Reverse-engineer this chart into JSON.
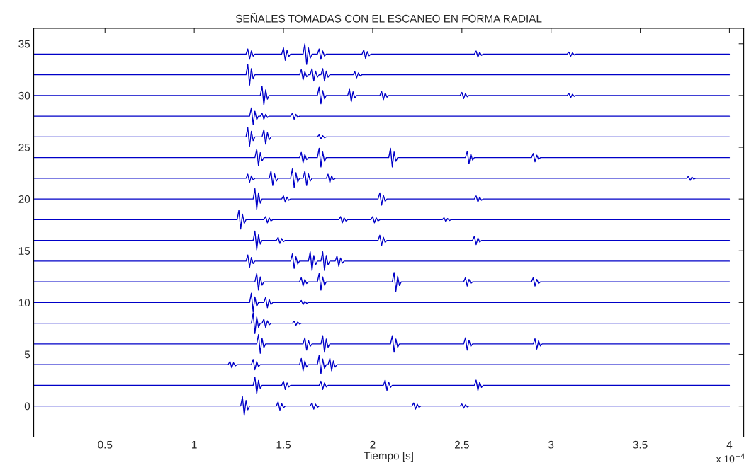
{
  "chart_data": {
    "type": "line",
    "title": "SEÑALES TOMADAS CON EL ESCANEO EN FORMA RADIAL",
    "xlabel": "Tiempo [s]",
    "annotations": [
      "x 10$^{−4}$"
    ],
    "xlim": [
      0.1,
      4.08
    ],
    "ylim": [
      -3,
      36.5
    ],
    "xticks": [
      0.5,
      1,
      1.5,
      2,
      2.5,
      3,
      3.5,
      4
    ],
    "yticks": [
      0,
      5,
      10,
      15,
      20,
      25,
      30,
      35
    ],
    "series": [
      {
        "color": "#0000c8",
        "x": [
          0.1,
          1.26,
          1.27,
          1.28,
          1.29,
          1.3,
          1.31,
          1.46,
          1.47,
          1.48,
          1.49,
          1.5,
          1.51,
          1.65,
          1.66,
          1.67,
          1.68,
          1.69,
          1.7,
          2.22,
          2.23,
          2.24,
          2.25,
          2.26,
          2.27,
          2.49,
          2.5,
          2.51,
          2.52,
          2.53,
          2.54,
          4
        ],
        "values": [
          0,
          0,
          0.9,
          -0.9,
          0.54,
          -0.36,
          0,
          0,
          0.4,
          -0.4,
          0.24,
          -0.16,
          0,
          0,
          0.3,
          -0.3,
          0.18,
          -0.12,
          0,
          0,
          0.3,
          -0.3,
          0.18,
          -0.12,
          0,
          0,
          0.2,
          -0.2,
          0.12,
          -0.08,
          0,
          0
        ]
      },
      {
        "color": "#0000c8",
        "x": [
          0.1,
          1.33,
          1.34,
          1.35,
          1.36,
          1.37,
          1.38,
          1.49,
          1.5,
          1.51,
          1.52,
          1.53,
          1.54,
          1.7,
          1.71,
          1.72,
          1.73,
          1.74,
          1.75,
          2.06,
          2.07,
          2.08,
          2.09,
          2.1,
          2.11,
          2.57,
          2.58,
          2.59,
          2.6,
          2.61,
          2.62,
          4
        ],
        "values": [
          2,
          2,
          2.8,
          1.2,
          2.48,
          1.68,
          2,
          2,
          2.4,
          1.6,
          2.24,
          1.84,
          2,
          2,
          2.4,
          1.6,
          2.24,
          1.84,
          2,
          2,
          2.5,
          1.5,
          2.3,
          1.8,
          2,
          2,
          2.5,
          1.5,
          2.3,
          1.8,
          2,
          2
        ]
      },
      {
        "color": "#0000c8",
        "x": [
          0.1,
          1.19,
          1.2,
          1.21,
          1.22,
          1.23,
          1.24,
          1.32,
          1.33,
          1.34,
          1.35,
          1.36,
          1.37,
          1.59,
          1.6,
          1.61,
          1.62,
          1.63,
          1.64,
          1.69,
          1.7,
          1.71,
          1.72,
          1.73,
          1.74,
          1.75,
          1.76,
          1.77,
          1.78,
          1.79,
          1.8,
          4
        ],
        "values": [
          4,
          4,
          4.3,
          3.7,
          4.18,
          3.88,
          4,
          4,
          4.5,
          3.5,
          4.3,
          3.8,
          4,
          4,
          4.6,
          3.4,
          4.36,
          3.76,
          4,
          4,
          4.9,
          3.1,
          4.54,
          3.64,
          4,
          4,
          4.6,
          3.4,
          4.36,
          3.76,
          4,
          4
        ]
      },
      {
        "color": "#0000c8",
        "x": [
          0.1,
          1.35,
          1.36,
          1.37,
          1.38,
          1.39,
          1.4,
          1.61,
          1.62,
          1.63,
          1.64,
          1.65,
          1.66,
          1.71,
          1.72,
          1.73,
          1.74,
          1.75,
          1.76,
          2.1,
          2.11,
          2.12,
          2.13,
          2.14,
          2.15,
          2.51,
          2.52,
          2.53,
          2.54,
          2.55,
          2.56,
          2.9,
          2.91,
          2.92,
          2.93,
          2.94,
          2.95,
          4
        ],
        "values": [
          6,
          6,
          6.9,
          5.1,
          6.54,
          5.64,
          6,
          6,
          6.6,
          5.4,
          6.36,
          5.76,
          6,
          6,
          6.8,
          5.2,
          6.48,
          5.68,
          6,
          6,
          6.8,
          5.2,
          6.48,
          5.68,
          6,
          6,
          6.6,
          5.4,
          6.36,
          5.76,
          6,
          6,
          6.5,
          5.5,
          6.3,
          5.8,
          6,
          6
        ]
      },
      {
        "color": "#0000c8",
        "x": [
          0.1,
          1.32,
          1.33,
          1.34,
          1.35,
          1.36,
          1.37,
          1.38,
          1.39,
          1.4,
          1.41,
          1.42,
          1.43,
          1.55,
          1.56,
          1.57,
          1.58,
          1.59,
          1.6,
          4
        ],
        "values": [
          8,
          8,
          9,
          7,
          8.6,
          7.6,
          8,
          8,
          8.4,
          7.6,
          8.24,
          7.84,
          8,
          8,
          8.2,
          7.8,
          8.12,
          7.92,
          8,
          8
        ]
      },
      {
        "color": "#0000c8",
        "x": [
          0.1,
          1.31,
          1.32,
          1.33,
          1.34,
          1.35,
          1.36,
          1.39,
          1.4,
          1.41,
          1.42,
          1.43,
          1.44,
          1.59,
          1.6,
          1.61,
          1.62,
          1.63,
          1.64,
          4
        ],
        "values": [
          10,
          10,
          10.9,
          9.1,
          10.54,
          9.64,
          10,
          10,
          10.5,
          9.5,
          10.3,
          9.8,
          10,
          10,
          10.2,
          9.8,
          10.12,
          9.92,
          10,
          10
        ]
      },
      {
        "color": "#0000c8",
        "x": [
          0.1,
          1.34,
          1.35,
          1.36,
          1.37,
          1.38,
          1.39,
          1.59,
          1.6,
          1.61,
          1.62,
          1.63,
          1.64,
          1.69,
          1.7,
          1.71,
          1.72,
          1.73,
          1.74,
          2.11,
          2.12,
          2.13,
          2.14,
          2.15,
          2.16,
          2.51,
          2.52,
          2.53,
          2.54,
          2.55,
          2.56,
          2.89,
          2.9,
          2.91,
          2.92,
          2.93,
          2.94,
          4
        ],
        "values": [
          12,
          12,
          12.8,
          11.2,
          12.48,
          11.68,
          12,
          12,
          12.4,
          11.6,
          12.24,
          11.84,
          12,
          12,
          12.8,
          11.2,
          12.48,
          11.68,
          12,
          12,
          12.9,
          11.1,
          12.54,
          11.64,
          12,
          12,
          12.4,
          11.6,
          12.24,
          11.84,
          12,
          12,
          12.4,
          11.6,
          12.24,
          11.84,
          12,
          12
        ]
      },
      {
        "color": "#0000c8",
        "x": [
          0.1,
          1.29,
          1.3,
          1.31,
          1.32,
          1.33,
          1.34,
          1.54,
          1.55,
          1.56,
          1.57,
          1.58,
          1.59,
          1.64,
          1.65,
          1.66,
          1.67,
          1.68,
          1.69,
          1.71,
          1.72,
          1.73,
          1.74,
          1.75,
          1.76,
          1.79,
          1.8,
          1.81,
          1.82,
          1.83,
          1.84,
          4
        ],
        "values": [
          14,
          14,
          14.6,
          13.4,
          14.36,
          13.76,
          14,
          14,
          14.7,
          13.3,
          14.42,
          13.72,
          14,
          14,
          14.9,
          13.1,
          14.54,
          13.64,
          14,
          14,
          14.9,
          13.1,
          14.54,
          13.64,
          14,
          14,
          14.5,
          13.5,
          14.3,
          13.8,
          14,
          14
        ]
      },
      {
        "color": "#0000c8",
        "x": [
          0.1,
          1.33,
          1.34,
          1.35,
          1.36,
          1.37,
          1.38,
          1.46,
          1.47,
          1.48,
          1.49,
          1.5,
          1.51,
          2.03,
          2.04,
          2.05,
          2.06,
          2.07,
          2.08,
          2.56,
          2.57,
          2.58,
          2.59,
          2.6,
          2.61,
          4
        ],
        "values": [
          16,
          16,
          16.9,
          15.1,
          16.54,
          15.64,
          16,
          16,
          16.3,
          15.7,
          16.18,
          15.88,
          16,
          16,
          16.5,
          15.5,
          16.3,
          15.8,
          16,
          16,
          16.4,
          15.6,
          16.24,
          15.84,
          16,
          16
        ]
      },
      {
        "color": "#0000c8",
        "x": [
          0.1,
          1.24,
          1.25,
          1.26,
          1.27,
          1.28,
          1.29,
          1.39,
          1.4,
          1.41,
          1.42,
          1.43,
          1.44,
          1.81,
          1.82,
          1.83,
          1.84,
          1.85,
          1.86,
          1.99,
          2.0,
          2.01,
          2.02,
          2.03,
          2.04,
          2.39,
          2.4,
          2.41,
          2.42,
          2.43,
          2.44,
          4
        ],
        "values": [
          18,
          18,
          18.9,
          17.1,
          18.54,
          17.64,
          18,
          18,
          18.3,
          17.7,
          18.18,
          17.88,
          18,
          18,
          18.3,
          17.7,
          18.18,
          17.88,
          18,
          18,
          18.3,
          17.7,
          18.18,
          17.88,
          18,
          18,
          18.2,
          17.8,
          18.12,
          17.92,
          18,
          18
        ]
      },
      {
        "color": "#0000c8",
        "x": [
          0.1,
          1.33,
          1.34,
          1.35,
          1.36,
          1.37,
          1.38,
          1.49,
          1.5,
          1.51,
          1.52,
          1.53,
          1.54,
          2.03,
          2.04,
          2.05,
          2.06,
          2.07,
          2.08,
          2.57,
          2.58,
          2.59,
          2.6,
          2.61,
          2.62,
          4
        ],
        "values": [
          20,
          20,
          21,
          19,
          20.6,
          19.6,
          20,
          20,
          20.3,
          19.7,
          20.18,
          19.88,
          20,
          20,
          20.6,
          19.4,
          20.36,
          19.76,
          20,
          20,
          20.3,
          19.7,
          20.18,
          19.88,
          20,
          20
        ]
      },
      {
        "color": "#0000c8",
        "x": [
          0.1,
          1.29,
          1.3,
          1.31,
          1.32,
          1.33,
          1.34,
          1.42,
          1.43,
          1.44,
          1.45,
          1.46,
          1.47,
          1.54,
          1.55,
          1.56,
          1.57,
          1.58,
          1.59,
          1.61,
          1.62,
          1.63,
          1.64,
          1.65,
          1.66,
          1.74,
          1.75,
          1.76,
          1.77,
          1.78,
          1.79,
          3.76,
          3.77,
          3.78,
          3.79,
          3.8,
          3.81,
          4
        ],
        "values": [
          22,
          22,
          22.4,
          21.6,
          22.24,
          21.84,
          22,
          22,
          22.7,
          21.3,
          22.42,
          21.72,
          22,
          22,
          22.9,
          21.1,
          22.54,
          21.64,
          22,
          22,
          22.7,
          21.3,
          22.42,
          21.72,
          22,
          22,
          22.4,
          21.6,
          22.24,
          21.84,
          22,
          22,
          22.2,
          21.8,
          22.12,
          21.92,
          22,
          22
        ]
      },
      {
        "color": "#0000c8",
        "x": [
          0.1,
          1.34,
          1.35,
          1.36,
          1.37,
          1.38,
          1.39,
          1.59,
          1.6,
          1.61,
          1.62,
          1.63,
          1.64,
          1.69,
          1.7,
          1.71,
          1.72,
          1.73,
          1.74,
          2.09,
          2.1,
          2.11,
          2.12,
          2.13,
          2.14,
          2.52,
          2.53,
          2.54,
          2.55,
          2.56,
          2.57,
          2.89,
          2.9,
          2.91,
          2.92,
          2.93,
          2.94,
          4
        ],
        "values": [
          24,
          24,
          24.8,
          23.2,
          24.48,
          23.68,
          24,
          24,
          24.5,
          23.5,
          24.3,
          23.8,
          24,
          24,
          24.9,
          23.1,
          24.54,
          23.64,
          24,
          24,
          24.9,
          23.1,
          24.54,
          23.64,
          24,
          24,
          24.6,
          23.4,
          24.36,
          23.76,
          24,
          24,
          24.4,
          23.6,
          24.24,
          23.84,
          24,
          24
        ]
      },
      {
        "color": "#0000c8",
        "x": [
          0.1,
          1.29,
          1.3,
          1.31,
          1.32,
          1.33,
          1.34,
          1.38,
          1.39,
          1.4,
          1.41,
          1.42,
          1.43,
          1.69,
          1.7,
          1.71,
          1.72,
          1.73,
          1.74,
          4
        ],
        "values": [
          26,
          26,
          26.9,
          25.1,
          26.54,
          25.64,
          26,
          26,
          26.7,
          25.3,
          26.42,
          25.72,
          26,
          26,
          26.2,
          25.8,
          26.12,
          25.92,
          26,
          26
        ]
      },
      {
        "color": "#0000c8",
        "x": [
          0.1,
          1.31,
          1.32,
          1.33,
          1.34,
          1.35,
          1.36,
          1.37,
          1.38,
          1.39,
          1.4,
          1.41,
          1.42,
          1.54,
          1.55,
          1.56,
          1.57,
          1.58,
          1.59,
          4
        ],
        "values": [
          28,
          28,
          28.8,
          27.2,
          28.48,
          27.68,
          28,
          28,
          28.3,
          27.7,
          28.18,
          27.88,
          28,
          28,
          28.3,
          27.7,
          28.18,
          27.88,
          28,
          28
        ]
      },
      {
        "color": "#0000c8",
        "x": [
          0.1,
          1.37,
          1.38,
          1.39,
          1.4,
          1.41,
          1.42,
          1.69,
          1.7,
          1.71,
          1.72,
          1.73,
          1.74,
          1.86,
          1.87,
          1.88,
          1.89,
          1.9,
          1.91,
          2.04,
          2.05,
          2.06,
          2.07,
          2.08,
          2.09,
          2.49,
          2.5,
          2.51,
          2.52,
          2.53,
          2.54,
          3.09,
          3.1,
          3.11,
          3.12,
          3.13,
          3.14,
          4
        ],
        "values": [
          30,
          30,
          30.9,
          29.1,
          30.54,
          29.64,
          30,
          30,
          30.8,
          29.2,
          30.48,
          29.68,
          30,
          30,
          30.6,
          29.4,
          30.36,
          29.76,
          30,
          30,
          30.4,
          29.6,
          30.24,
          29.84,
          30,
          30,
          30.3,
          29.7,
          30.18,
          29.88,
          30,
          30,
          30.2,
          29.8,
          30.12,
          29.92,
          30,
          30
        ]
      },
      {
        "color": "#0000c8",
        "x": [
          0.1,
          1.29,
          1.3,
          1.31,
          1.32,
          1.33,
          1.34,
          1.59,
          1.6,
          1.61,
          1.62,
          1.63,
          1.64,
          1.65,
          1.66,
          1.67,
          1.68,
          1.69,
          1.7,
          1.71,
          1.72,
          1.73,
          1.74,
          1.75,
          1.76,
          1.89,
          1.9,
          1.91,
          1.92,
          1.93,
          1.94,
          4
        ],
        "values": [
          32,
          32,
          33,
          31,
          32.6,
          31.6,
          32,
          32,
          32.5,
          31.5,
          32.3,
          31.8,
          32,
          32,
          32.6,
          31.4,
          32.36,
          31.76,
          32,
          32,
          32.6,
          31.4,
          32.36,
          31.76,
          32,
          32,
          32.3,
          31.7,
          32.18,
          31.88,
          32,
          32
        ]
      },
      {
        "color": "#0000c8",
        "x": [
          0.1,
          1.29,
          1.3,
          1.31,
          1.32,
          1.33,
          1.34,
          1.49,
          1.5,
          1.51,
          1.52,
          1.53,
          1.54,
          1.61,
          1.62,
          1.63,
          1.64,
          1.65,
          1.66,
          1.69,
          1.7,
          1.71,
          1.72,
          1.73,
          1.74,
          1.94,
          1.95,
          1.96,
          1.97,
          1.98,
          1.99,
          2.57,
          2.58,
          2.59,
          2.6,
          2.61,
          2.62,
          3.09,
          3.1,
          3.11,
          3.12,
          3.13,
          3.14,
          4
        ],
        "values": [
          34,
          34,
          34.5,
          33.5,
          34.3,
          33.8,
          34,
          34,
          34.6,
          33.4,
          34.36,
          33.76,
          34,
          34,
          35,
          33,
          34.6,
          33.6,
          34,
          34,
          34.5,
          33.5,
          34.3,
          33.8,
          34,
          34,
          34.4,
          33.6,
          34.24,
          33.84,
          34,
          34,
          34.3,
          33.7,
          34.18,
          33.88,
          34,
          34,
          34.2,
          33.8,
          34.12,
          33.92,
          34,
          34
        ]
      }
    ]
  }
}
